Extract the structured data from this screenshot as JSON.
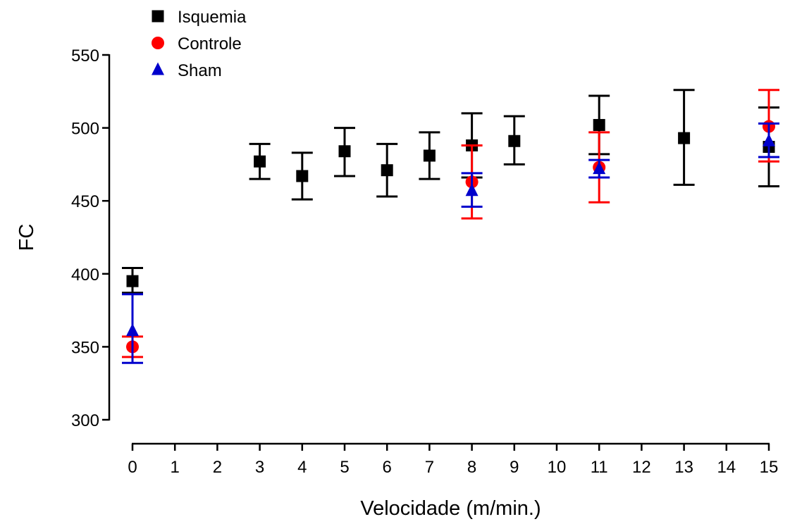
{
  "chart_data": {
    "type": "scatter",
    "title": "",
    "xlabel": "Velocidade (m/min.)",
    "ylabel": "FC",
    "ylim": [
      300,
      550
    ],
    "yticks": [
      300,
      350,
      400,
      450,
      500,
      550
    ],
    "categories": [
      "0",
      "1",
      "2",
      "3",
      "4",
      "5",
      "6",
      "7",
      "8",
      "9",
      "10",
      "11",
      "12",
      "13",
      "14",
      "15"
    ],
    "grid": false,
    "legend": "top-left",
    "series": [
      {
        "name": "Isquemia",
        "color": "#000000",
        "marker": "square",
        "points": [
          {
            "x": "0",
            "y": 395,
            "err_low": 387,
            "err_high": 404
          },
          {
            "x": "3",
            "y": 477,
            "err_low": 465,
            "err_high": 489
          },
          {
            "x": "4",
            "y": 467,
            "err_low": 451,
            "err_high": 483
          },
          {
            "x": "5",
            "y": 484,
            "err_low": 467,
            "err_high": 500
          },
          {
            "x": "6",
            "y": 471,
            "err_low": 453,
            "err_high": 489
          },
          {
            "x": "7",
            "y": 481,
            "err_low": 465,
            "err_high": 497
          },
          {
            "x": "8",
            "y": 488,
            "err_low": 466,
            "err_high": 510
          },
          {
            "x": "9",
            "y": 491,
            "err_low": 475,
            "err_high": 508
          },
          {
            "x": "11",
            "y": 502,
            "err_low": 482,
            "err_high": 522
          },
          {
            "x": "13",
            "y": 493,
            "err_low": 461,
            "err_high": 526
          },
          {
            "x": "15",
            "y": 487,
            "err_low": 460,
            "err_high": 514
          }
        ]
      },
      {
        "name": "Controle",
        "color": "#ff0000",
        "marker": "circle",
        "points": [
          {
            "x": "0",
            "y": 350,
            "err_low": 343,
            "err_high": 357
          },
          {
            "x": "8",
            "y": 463,
            "err_low": 438,
            "err_high": 488
          },
          {
            "x": "11",
            "y": 473,
            "err_low": 449,
            "err_high": 497
          },
          {
            "x": "15",
            "y": 501,
            "err_low": 477,
            "err_high": 526
          }
        ]
      },
      {
        "name": "Sham",
        "color": "#0000cc",
        "marker": "triangle",
        "points": [
          {
            "x": "0",
            "y": 361,
            "err_low": 339,
            "err_high": 386
          },
          {
            "x": "8",
            "y": 457,
            "err_low": 446,
            "err_high": 469
          },
          {
            "x": "11",
            "y": 472,
            "err_low": 466,
            "err_high": 478
          },
          {
            "x": "15",
            "y": 491,
            "err_low": 480,
            "err_high": 503
          }
        ]
      }
    ]
  }
}
